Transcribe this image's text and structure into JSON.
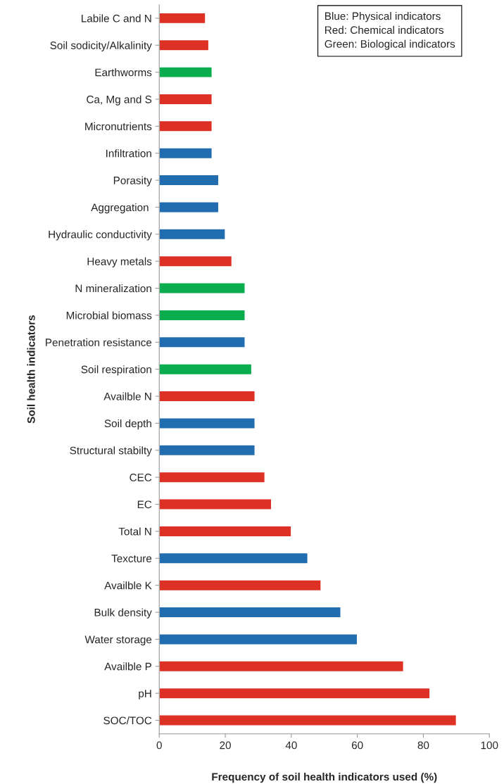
{
  "chart_data": {
    "type": "bar",
    "orientation": "horizontal",
    "xlabel": "Frequency of soil health indicators used (%)",
    "ylabel": "Soil health indicators",
    "categories": [
      "Labile C and N",
      "Soil sodicity/Alkalinity",
      "Earthworms",
      "Ca, Mg and S",
      "Micronutrients",
      "Infiltration",
      "Porasity",
      "Aggregation ",
      "Hydraulic conductivity",
      "Heavy metals",
      "N mineralization",
      "Microbial biomass",
      "Penetration resistance",
      "Soil respiration",
      "Availble N",
      "Soil depth",
      "Structural stabilty",
      "CEC",
      "EC",
      "Total N",
      "Texcture",
      "Availble K",
      "Bulk density",
      "Water storage",
      "Availble P",
      "pH",
      "SOC/TOC"
    ],
    "values": [
      14,
      15,
      16,
      16,
      16,
      16,
      18,
      18,
      20,
      22,
      26,
      26,
      26,
      28,
      29,
      29,
      29,
      32,
      34,
      40,
      45,
      49,
      55,
      60,
      74,
      82,
      90
    ],
    "colors": [
      "#de3125",
      "#de3125",
      "#0aad4e",
      "#de3125",
      "#de3125",
      "#226db0",
      "#226db0",
      "#226db0",
      "#226db0",
      "#de3125",
      "#0aad4e",
      "#0aad4e",
      "#226db0",
      "#0aad4e",
      "#de3125",
      "#226db0",
      "#226db0",
      "#de3125",
      "#de3125",
      "#de3125",
      "#226db0",
      "#de3125",
      "#226db0",
      "#226db0",
      "#de3125",
      "#de3125",
      "#de3125"
    ],
    "xlim": [
      0,
      100
    ],
    "xticks": [
      0,
      20,
      40,
      60,
      80,
      100
    ],
    "annotations": [
      "Blue: Physical indicators\nRed: Chemical indicators\nGreen: Biological indicators"
    ],
    "grid": false
  }
}
